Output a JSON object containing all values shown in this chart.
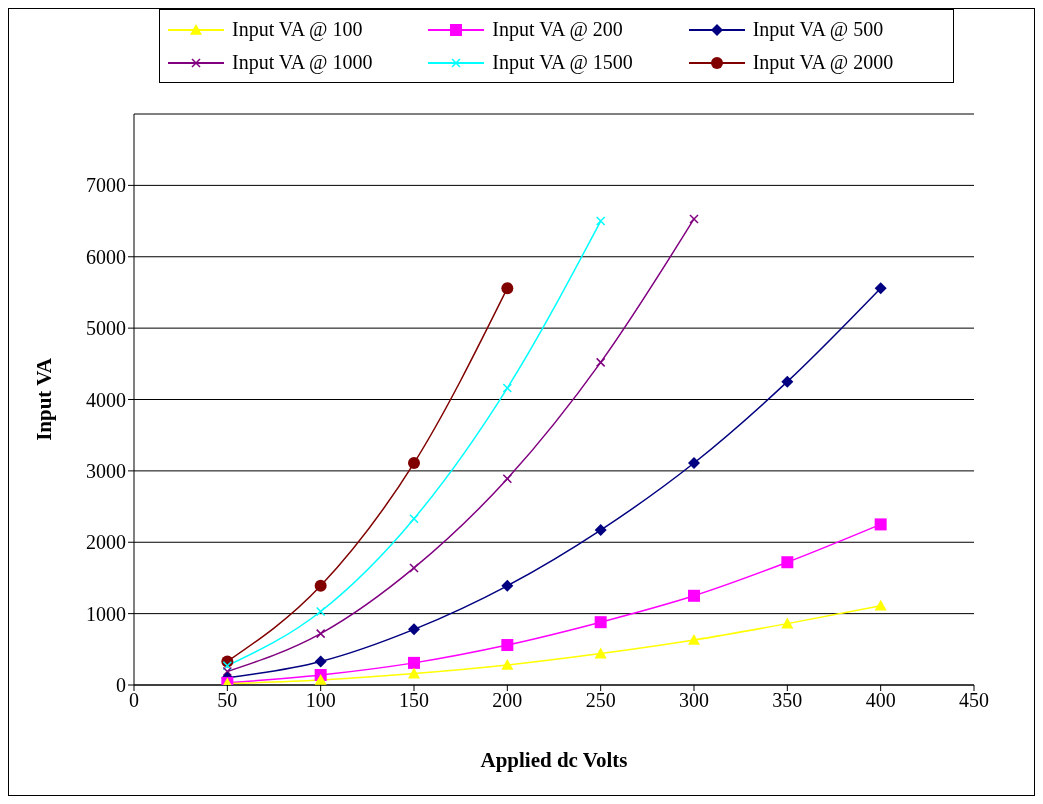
{
  "chart_data": {
    "type": "line",
    "xlabel": "Applied dc Volts",
    "ylabel": "Input VA",
    "x": [
      50,
      100,
      150,
      200,
      250,
      300,
      350,
      400
    ],
    "series": [
      {
        "name": "Input VA @ 100",
        "color": "#ffff00",
        "marker": "triangle",
        "values": [
          20,
          70,
          160,
          280,
          440,
          630,
          860,
          1110
        ]
      },
      {
        "name": "Input VA @ 200",
        "color": "#ff00ff",
        "marker": "square",
        "values": [
          30,
          140,
          310,
          560,
          880,
          1250,
          1720,
          2250
        ]
      },
      {
        "name": "Input VA @ 500",
        "color": "#000080",
        "marker": "diamond",
        "values": [
          100,
          330,
          780,
          1390,
          2170,
          3110,
          4250,
          5560
        ]
      },
      {
        "name": "Input VA @ 1000",
        "color": "#800080",
        "marker": "cross",
        "values": [
          190,
          720,
          1640,
          2890,
          4520,
          6530,
          null,
          null
        ]
      },
      {
        "name": "Input VA @ 1500",
        "color": "#00ffff",
        "marker": "cross",
        "values": [
          270,
          1030,
          2330,
          4160,
          6500,
          null,
          null,
          null
        ]
      },
      {
        "name": "Input VA @ 2000",
        "color": "#800000",
        "marker": "circle",
        "values": [
          330,
          1390,
          3110,
          5560,
          null,
          null,
          null,
          null
        ]
      }
    ],
    "xlim": [
      0,
      450
    ],
    "xticks": [
      0,
      50,
      100,
      150,
      200,
      250,
      300,
      350,
      400,
      450
    ],
    "ylim": [
      0,
      8000
    ],
    "yticks": [
      0,
      1000,
      2000,
      3000,
      4000,
      5000,
      6000,
      7000
    ],
    "grid": "y",
    "legend": "top"
  }
}
